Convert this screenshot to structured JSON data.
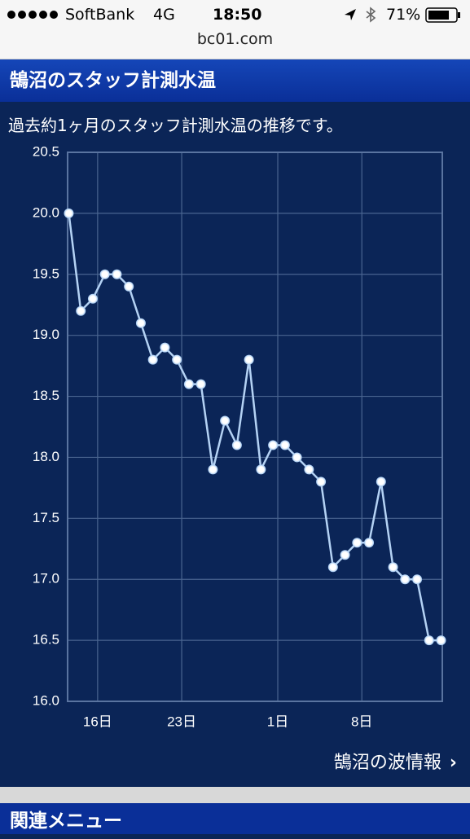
{
  "status_bar": {
    "carrier": "SoftBank",
    "network": "4G",
    "time": "18:50",
    "battery": "71%"
  },
  "url": "bc01.com",
  "header": {
    "title": "鵠沼のスタッフ計測水温"
  },
  "description": "過去約1ヶ月のスタッフ計測水温の推移です。",
  "chart_data": {
    "type": "line",
    "x": [
      13.6,
      14.6,
      15.6,
      16.6,
      17.6,
      18.6,
      19.6,
      20.6,
      21.6,
      22.6,
      23.6,
      24.6,
      25.6,
      26.6,
      27.6,
      28.6,
      29.6,
      30.6,
      31.6,
      32.6,
      33.6,
      34.6,
      35.6,
      36.6,
      37.6,
      38.6,
      39.6,
      40.6,
      41.6,
      42.6,
      43.6,
      44.6
    ],
    "series": [
      {
        "color": "#b4d2f4",
        "values": [
          20.0,
          19.2,
          19.3,
          19.5,
          19.5,
          19.4,
          19.1,
          18.8,
          18.9,
          18.8,
          18.6,
          18.6,
          17.9,
          18.3,
          18.1,
          18.8,
          17.9,
          18.1,
          18.1,
          18.0,
          17.9,
          17.8,
          17.1,
          17.2,
          17.3,
          17.3,
          17.8,
          17.1,
          17.0,
          17.0,
          16.5,
          16.5
        ]
      }
    ],
    "xlim": [
      13.5,
      44.7
    ],
    "xticks": [
      {
        "value": 16,
        "label": "16日"
      },
      {
        "value": 23,
        "label": "23日"
      },
      {
        "value": 31,
        "label": "1日"
      },
      {
        "value": 38,
        "label": "8日"
      }
    ],
    "ylim": [
      16,
      20.5
    ],
    "yticks": [
      {
        "value": 16,
        "label": "16.0"
      },
      16.5,
      {
        "value": 17,
        "label": "17.0"
      },
      17.5,
      {
        "value": 18,
        "label": "18.0"
      },
      18.5,
      {
        "value": 19,
        "label": "19.0"
      },
      19.5,
      {
        "value": 20,
        "label": "20.0"
      },
      20.5
    ],
    "grid": true
  },
  "link": "鵠沼の波情報",
  "related": {
    "title": "関連メニュー"
  }
}
